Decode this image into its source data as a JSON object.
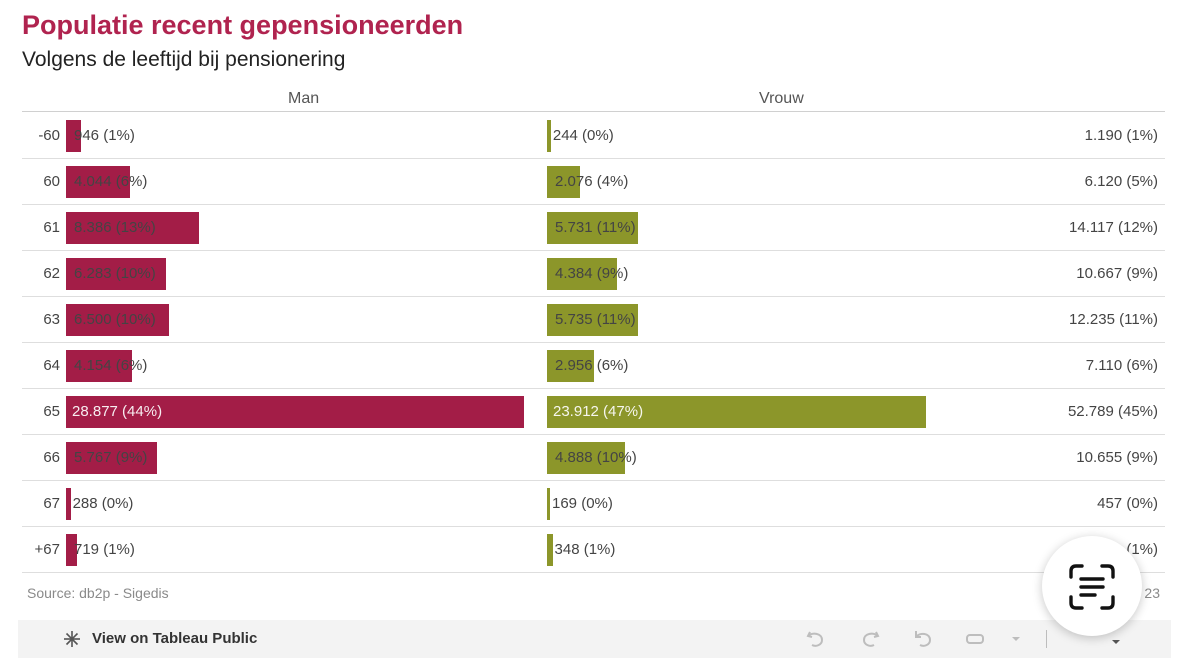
{
  "header": {
    "title": "Populatie recent gepensioneerden",
    "subtitle": "Volgens de leeftijd bij pensionering"
  },
  "source": "Source: db2p - Sigedis",
  "source_right": "23",
  "footer": {
    "tableau_link": "View on Tableau Public"
  },
  "colors": {
    "title": "#b0234f",
    "man": "#a31d47",
    "vrouw": "#8c962a"
  },
  "icons": [
    "tableau-icon",
    "undo-icon",
    "redo-icon",
    "revert-icon",
    "share-icon",
    "download-icon",
    "text-scan-icon"
  ],
  "chart_data": {
    "type": "bar",
    "columns": [
      "Man",
      "Vrouw"
    ],
    "categories": [
      "-60",
      "60",
      "61",
      "62",
      "63",
      "64",
      "65",
      "66",
      "67",
      "+67"
    ],
    "series": [
      {
        "name": "Man",
        "values": [
          946,
          4044,
          8386,
          6283,
          6500,
          4154,
          28877,
          5767,
          288,
          719
        ],
        "labels": [
          "946 (1%)",
          "4.044 (6%)",
          "8.386 (13%)",
          "6.283 (10%)",
          "6.500 (10%)",
          "4.154 (6%)",
          "28.877 (44%)",
          "5.767 (9%)",
          "288 (0%)",
          "719 (1%)"
        ]
      },
      {
        "name": "Vrouw",
        "values": [
          244,
          2076,
          5731,
          4384,
          5735,
          2956,
          23912,
          4888,
          169,
          348
        ],
        "labels": [
          "244 (0%)",
          "2.076 (4%)",
          "5.731 (11%)",
          "4.384 (9%)",
          "5.735 (11%)",
          "2.956 (6%)",
          "23.912 (47%)",
          "4.888 (10%)",
          "169 (0%)",
          "348 (1%)"
        ]
      }
    ],
    "totals": {
      "values": [
        1190,
        6120,
        14117,
        10667,
        12235,
        7110,
        52789,
        10655,
        457,
        1067
      ],
      "labels": [
        "1.190 (1%)",
        "6.120 (5%)",
        "14.117 (12%)",
        "10.667 (9%)",
        "12.235 (11%)",
        "7.110 (6%)",
        "52.789 (45%)",
        "10.655 (9%)",
        "457 (0%)",
        "(1%)"
      ]
    },
    "xlim": [
      0,
      28877
    ],
    "grid": false,
    "legend": "none"
  }
}
